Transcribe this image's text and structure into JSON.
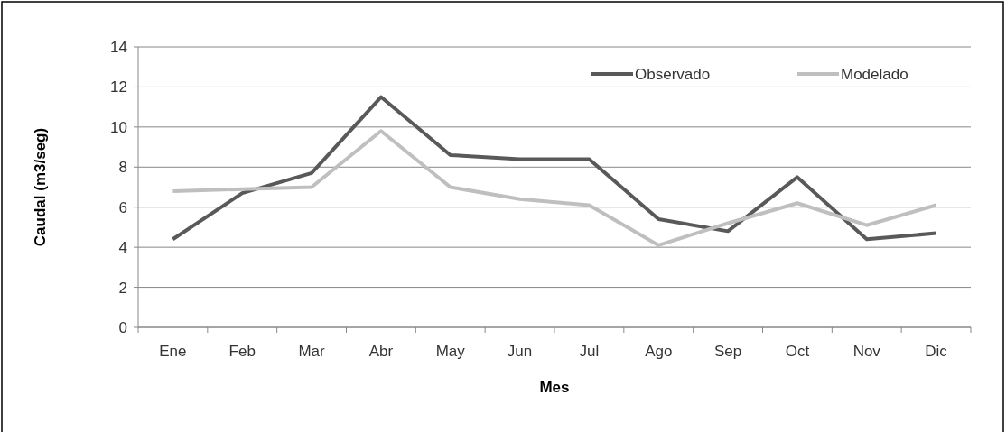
{
  "chart_data": {
    "type": "line",
    "xlabel": "Mes",
    "ylabel": "Caudal (m3/seg)",
    "categories": [
      "Ene",
      "Feb",
      "Mar",
      "Abr",
      "May",
      "Jun",
      "Jul",
      "Ago",
      "Sep",
      "Oct",
      "Nov",
      "Dic"
    ],
    "series": [
      {
        "name": "Observado",
        "color": "#595959",
        "values": [
          4.4,
          6.7,
          7.7,
          11.5,
          8.6,
          8.4,
          8.4,
          5.4,
          4.8,
          7.5,
          4.4,
          4.7
        ]
      },
      {
        "name": "Modelado",
        "color": "#bfbfbf",
        "values": [
          6.8,
          6.9,
          7.0,
          9.8,
          7.0,
          6.4,
          6.1,
          4.1,
          5.2,
          6.2,
          5.1,
          6.1
        ]
      }
    ],
    "ylim": [
      0,
      14
    ],
    "yticks": [
      0,
      2,
      4,
      6,
      8,
      10,
      12,
      14
    ],
    "grid": "y",
    "legend": "top right",
    "marker": "none",
    "line_style": "solid"
  }
}
